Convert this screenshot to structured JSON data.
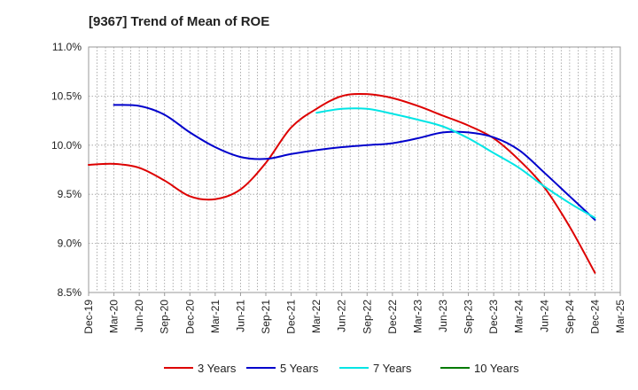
{
  "chart_data": {
    "type": "line",
    "title": "[9367]  Trend of Mean of ROE",
    "xlabel": "",
    "ylabel": "",
    "grid": true,
    "legend_position": "bottom",
    "x_categories": [
      "Dec-19",
      "Mar-20",
      "Jun-20",
      "Sep-20",
      "Dec-20",
      "Mar-21",
      "Jun-21",
      "Sep-21",
      "Dec-21",
      "Mar-22",
      "Jun-22",
      "Sep-22",
      "Dec-22",
      "Mar-23",
      "Jun-23",
      "Sep-23",
      "Dec-23",
      "Mar-24",
      "Jun-24",
      "Sep-24",
      "Dec-24",
      "Mar-25"
    ],
    "y_ticks": [
      "8.5%",
      "9.0%",
      "9.5%",
      "10.0%",
      "10.5%",
      "11.0%"
    ],
    "ylim": [
      8.5,
      11.0
    ],
    "series": [
      {
        "name": "3 Years",
        "color": "#dd0000",
        "values": [
          9.8,
          9.81,
          9.77,
          9.64,
          9.48,
          9.45,
          9.55,
          9.82,
          10.18,
          10.37,
          10.5,
          10.52,
          10.48,
          10.4,
          10.3,
          10.2,
          10.07,
          9.85,
          9.57,
          9.17,
          8.7,
          null
        ]
      },
      {
        "name": "5 Years",
        "color": "#0000cc",
        "values": [
          null,
          10.41,
          10.4,
          10.31,
          10.13,
          9.98,
          9.88,
          9.86,
          9.91,
          9.95,
          9.98,
          10.0,
          10.02,
          10.07,
          10.13,
          10.13,
          10.08,
          9.95,
          9.72,
          9.48,
          9.24,
          null
        ]
      },
      {
        "name": "7 Years",
        "color": "#00e5e5",
        "values": [
          null,
          null,
          null,
          null,
          null,
          null,
          null,
          null,
          null,
          10.33,
          10.37,
          10.37,
          10.32,
          10.26,
          10.19,
          10.07,
          9.92,
          9.77,
          9.58,
          9.41,
          9.26,
          null
        ]
      },
      {
        "name": "10 Years",
        "color": "#007a00",
        "values": [
          null,
          null,
          null,
          null,
          null,
          null,
          null,
          null,
          null,
          null,
          null,
          null,
          null,
          null,
          null,
          null,
          null,
          null,
          null,
          null,
          null,
          null
        ]
      }
    ]
  }
}
